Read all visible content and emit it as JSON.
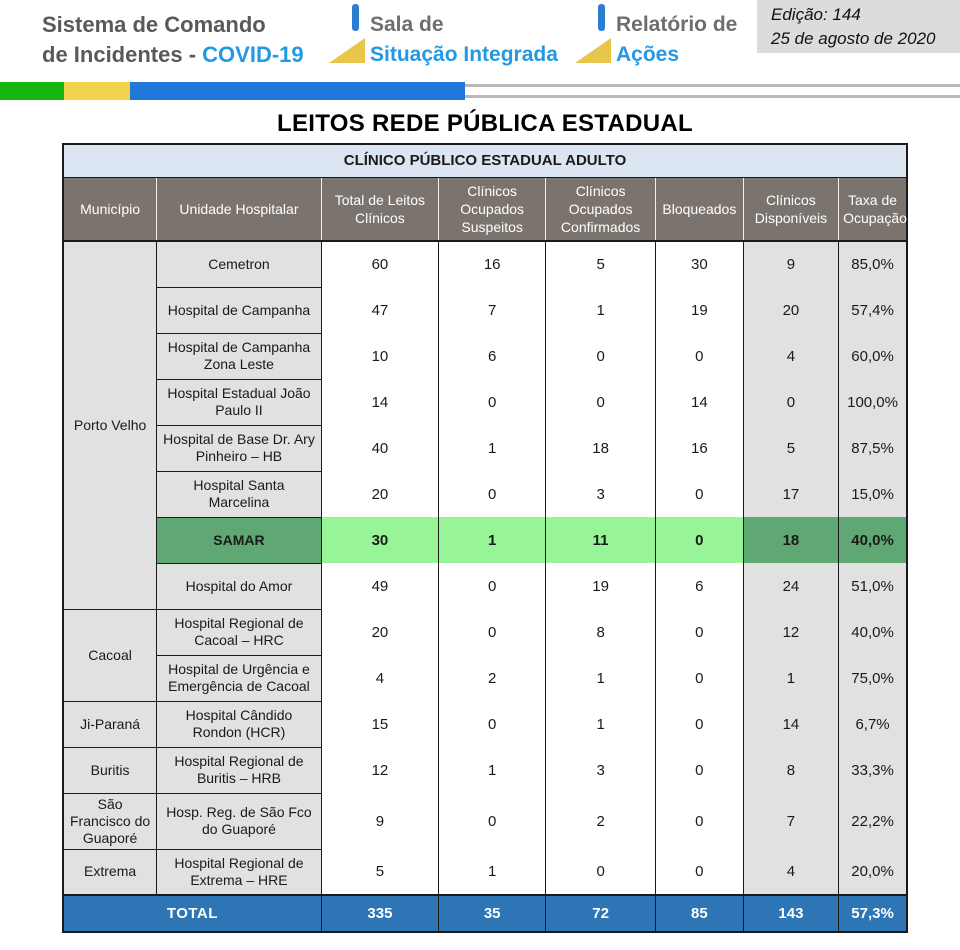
{
  "header": {
    "logo_line1": "Sistema de Comando",
    "logo_line2_prefix": "de Incidentes - ",
    "logo_line2_highlight": "COVID-19",
    "block2_line1": "Sala de",
    "block2_line2": "Situação Integrada",
    "block3_line1": "Relatório de",
    "block3_line2": "Ações",
    "edition_line1": "Edição: 144",
    "edition_line2": "25 de agosto de 2020"
  },
  "page_title": "LEITOS REDE PÚBLICA ESTADUAL",
  "table": {
    "title": "CLÍNICO PÚBLICO ESTADUAL ADULTO",
    "columns": [
      "Município",
      "Unidade Hospitalar",
      "Total de Leitos Clínicos",
      "Clínicos Ocupados Suspeitos",
      "Clínicos Ocupados Confirmados",
      "Bloqueados",
      "Clínicos Disponíveis",
      "Taxa de Ocupação"
    ],
    "groups": [
      {
        "municipality": "Porto Velho",
        "rows": [
          {
            "hospital": "Cemetron",
            "values": [
              "60",
              "16",
              "5",
              "30",
              "9",
              "85,0%"
            ],
            "highlight": false
          },
          {
            "hospital": "Hospital de Campanha",
            "values": [
              "47",
              "7",
              "1",
              "19",
              "20",
              "57,4%"
            ],
            "highlight": false
          },
          {
            "hospital": "Hospital de Campanha Zona Leste",
            "values": [
              "10",
              "6",
              "0",
              "0",
              "4",
              "60,0%"
            ],
            "highlight": false
          },
          {
            "hospital": "Hospital Estadual João Paulo II",
            "values": [
              "14",
              "0",
              "0",
              "14",
              "0",
              "100,0%"
            ],
            "highlight": false
          },
          {
            "hospital": "Hospital de Base Dr. Ary Pinheiro – HB",
            "values": [
              "40",
              "1",
              "18",
              "16",
              "5",
              "87,5%"
            ],
            "highlight": false
          },
          {
            "hospital": "Hospital Santa Marcelina",
            "values": [
              "20",
              "0",
              "3",
              "0",
              "17",
              "15,0%"
            ],
            "highlight": false
          },
          {
            "hospital": "SAMAR",
            "values": [
              "30",
              "1",
              "11",
              "0",
              "18",
              "40,0%"
            ],
            "highlight": true
          },
          {
            "hospital": "Hospital do Amor",
            "values": [
              "49",
              "0",
              "19",
              "6",
              "24",
              "51,0%"
            ],
            "highlight": false
          }
        ]
      },
      {
        "municipality": "Cacoal",
        "rows": [
          {
            "hospital": "Hospital Regional de Cacoal – HRC",
            "values": [
              "20",
              "0",
              "8",
              "0",
              "12",
              "40,0%"
            ],
            "highlight": false
          },
          {
            "hospital": "Hospital de Urgência e Emergência de Cacoal",
            "values": [
              "4",
              "2",
              "1",
              "0",
              "1",
              "75,0%"
            ],
            "highlight": false
          }
        ]
      },
      {
        "municipality": "Ji-Paraná",
        "rows": [
          {
            "hospital": "Hospital Cândido Rondon (HCR)",
            "values": [
              "15",
              "0",
              "1",
              "0",
              "14",
              "6,7%"
            ],
            "highlight": false
          }
        ]
      },
      {
        "municipality": "Buritis",
        "rows": [
          {
            "hospital": "Hospital Regional de Buritis – HRB",
            "values": [
              "12",
              "1",
              "3",
              "0",
              "8",
              "33,3%"
            ],
            "highlight": false
          }
        ]
      },
      {
        "municipality": "São Francisco do Guaporé",
        "rows": [
          {
            "hospital": "Hosp. Reg. de São Fco do Guaporé",
            "values": [
              "9",
              "0",
              "2",
              "0",
              "7",
              "22,2%"
            ],
            "highlight": false
          }
        ]
      },
      {
        "municipality": "Extrema",
        "rows": [
          {
            "hospital": "Hospital Regional de Extrema – HRE",
            "values": [
              "5",
              "1",
              "0",
              "0",
              "4",
              "20,0%"
            ],
            "highlight": false
          }
        ]
      }
    ],
    "total": {
      "label": "TOTAL",
      "values": [
        "335",
        "35",
        "72",
        "85",
        "143",
        "57,3%"
      ]
    }
  },
  "colors": {
    "header_cell_bg": "#7b746e",
    "table_title_bg": "#dce6f2",
    "gray_cell_bg": "#e1e1e1",
    "total_row_bg": "#2e75b6",
    "highlight_dark_green": "#60a873",
    "highlight_light_green": "#97f497",
    "strip_green": "#17b510",
    "strip_yellow": "#f0d24b",
    "strip_blue": "#2278d9",
    "brand_blue": "#2499e3",
    "brand_gray": "#58595b"
  }
}
